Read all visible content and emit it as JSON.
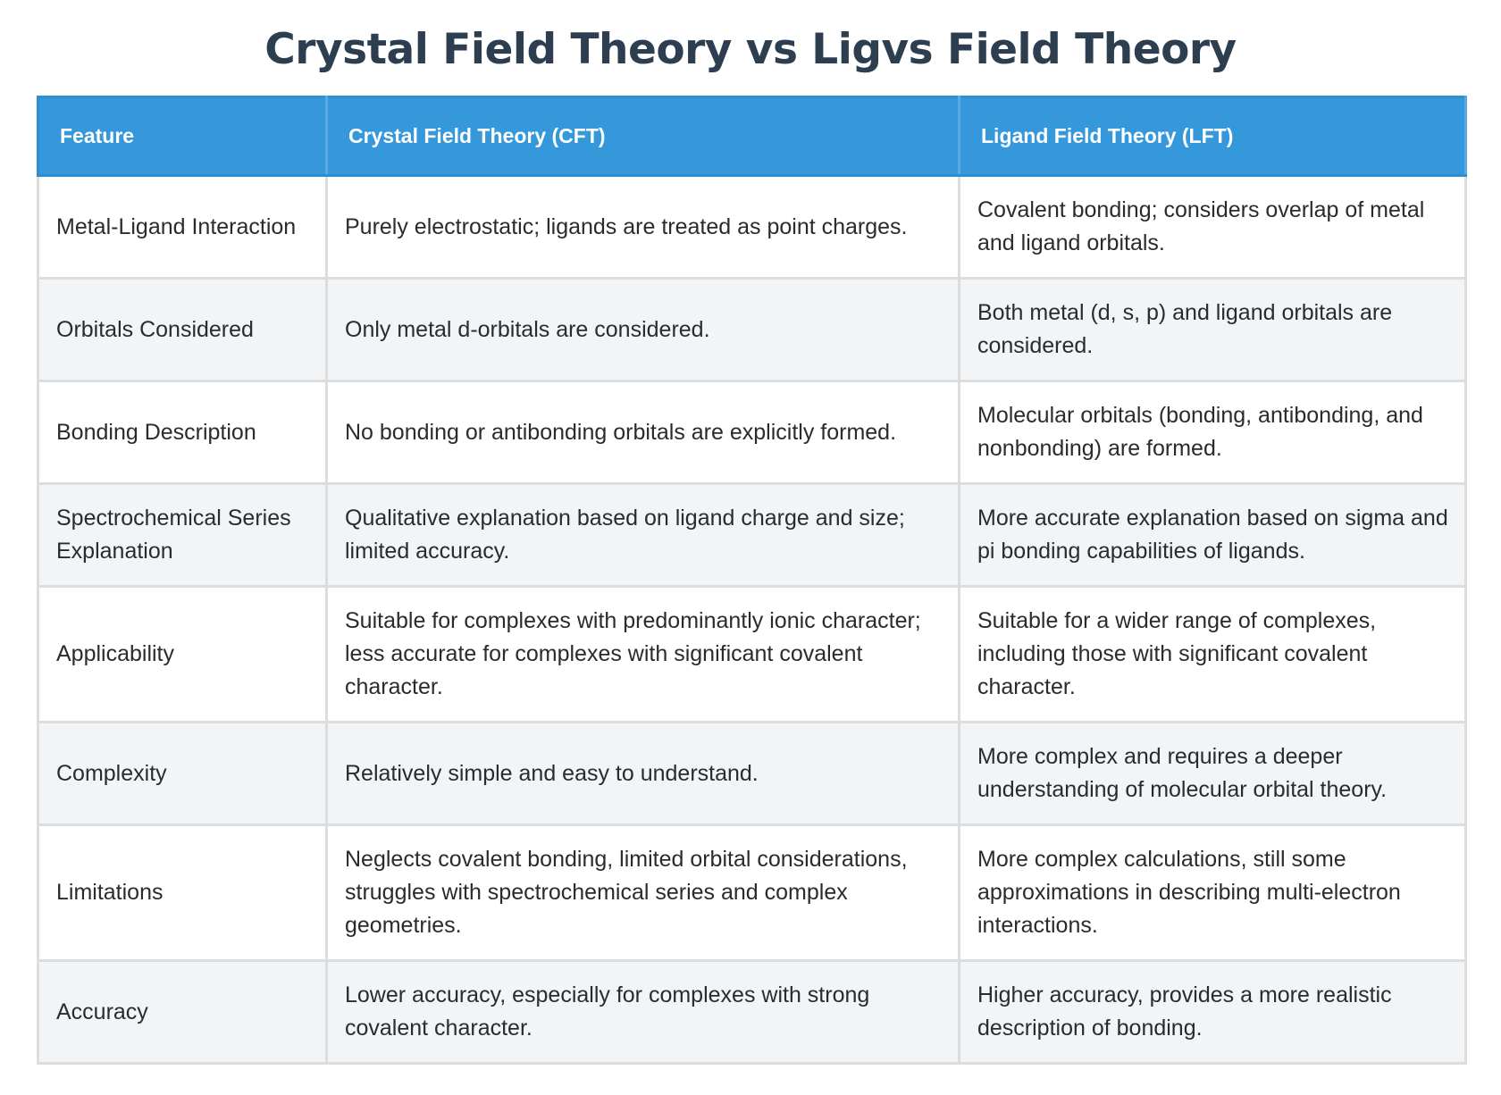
{
  "title": "Crystal Field Theory vs Ligvs Field Theory",
  "colors": {
    "header_bg": "#3498db",
    "title": "#2c3e50",
    "row_alt": "#f2f5f8"
  },
  "table": {
    "headers": [
      "Feature",
      "Crystal Field Theory (CFT)",
      "Ligand Field Theory (LFT)"
    ],
    "rows": [
      [
        "Metal-Ligand Interaction",
        "Purely electrostatic; ligands are treated as point charges.",
        "Covalent bonding; considers overlap of metal and ligand orbitals."
      ],
      [
        "Orbitals Considered",
        "Only metal d-orbitals are considered.",
        "Both metal (d, s, p) and ligand orbitals are considered."
      ],
      [
        "Bonding Description",
        "No bonding or antibonding orbitals are explicitly formed.",
        "Molecular orbitals (bonding, antibonding, and nonbonding) are formed."
      ],
      [
        "Spectrochemical Series Explanation",
        "Qualitative explanation based on ligand charge and size; limited accuracy.",
        "More accurate explanation based on sigma and pi bonding capabilities of ligands."
      ],
      [
        "Applicability",
        "Suitable for complexes with predominantly ionic character; less accurate for complexes with significant covalent character.",
        "Suitable for a wider range of complexes, including those with significant covalent character."
      ],
      [
        "Complexity",
        "Relatively simple and easy to understand.",
        "More complex and requires a deeper understanding of molecular orbital theory."
      ],
      [
        "Limitations",
        "Neglects covalent bonding, limited orbital considerations, struggles with spectrochemical series and complex geometries.",
        "More complex calculations, still some approximations in describing multi-electron interactions."
      ],
      [
        "Accuracy",
        "Lower accuracy, especially for complexes with strong covalent character.",
        "Higher accuracy, provides a more realistic description of bonding."
      ]
    ]
  }
}
